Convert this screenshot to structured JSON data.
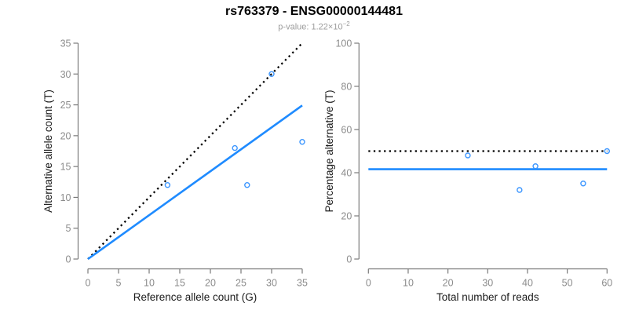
{
  "header": {
    "title": "rs763379 - ENSG00000144481",
    "subtitle_base": "p-value: 1.22×10",
    "subtitle_exponent": "−2"
  },
  "colors": {
    "title": "#000000",
    "subtitle": "#9c9c9c",
    "axis": "#7a7a7a",
    "tick_label": "#8c8c8c",
    "axis_title": "#1a1a1a",
    "accent_blue": "#1f8bff",
    "point_blue": "#3c96ff",
    "reference_black": "#000000"
  },
  "chart_data": [
    {
      "type": "scatter",
      "panel": "left",
      "xlabel": "Reference allele count (G)",
      "ylabel": "Alternative allele count (T)",
      "xlim": [
        0,
        35
      ],
      "ylim": [
        0,
        35
      ],
      "xticks": [
        0,
        5,
        10,
        15,
        20,
        25,
        30,
        35
      ],
      "yticks": [
        0,
        5,
        10,
        15,
        20,
        25,
        30,
        35
      ],
      "grid": false,
      "points": [
        [
          13,
          12
        ],
        [
          24,
          18
        ],
        [
          26,
          12
        ],
        [
          30,
          30
        ],
        [
          35,
          19
        ]
      ],
      "point_color": "#3c96ff",
      "lines": [
        {
          "name": "identity-line",
          "style": "dotted",
          "color": "#000000",
          "from": [
            0,
            0
          ],
          "to": [
            35,
            35
          ]
        },
        {
          "name": "fit-line",
          "style": "solid",
          "color": "#1f8bff",
          "from": [
            0,
            0
          ],
          "to": [
            35,
            24.9
          ]
        }
      ]
    },
    {
      "type": "scatter",
      "panel": "right",
      "xlabel": "Total number of reads",
      "ylabel": "Percentage alternative (T)",
      "xlim": [
        0,
        60
      ],
      "ylim": [
        0,
        100
      ],
      "xticks": [
        0,
        10,
        20,
        30,
        40,
        50,
        60
      ],
      "yticks": [
        0,
        20,
        40,
        60,
        80,
        100
      ],
      "grid": false,
      "points": [
        [
          25,
          48
        ],
        [
          38,
          32
        ],
        [
          42,
          43
        ],
        [
          54,
          35
        ],
        [
          60,
          50
        ]
      ],
      "point_color": "#3c96ff",
      "lines": [
        {
          "name": "expected-50pct-line",
          "style": "dotted",
          "color": "#000000",
          "from": [
            0,
            50
          ],
          "to": [
            60,
            50
          ]
        },
        {
          "name": "mean-percentage-line",
          "style": "solid",
          "color": "#1f8bff",
          "from": [
            0,
            41.6
          ],
          "to": [
            60,
            41.6
          ]
        }
      ]
    }
  ]
}
